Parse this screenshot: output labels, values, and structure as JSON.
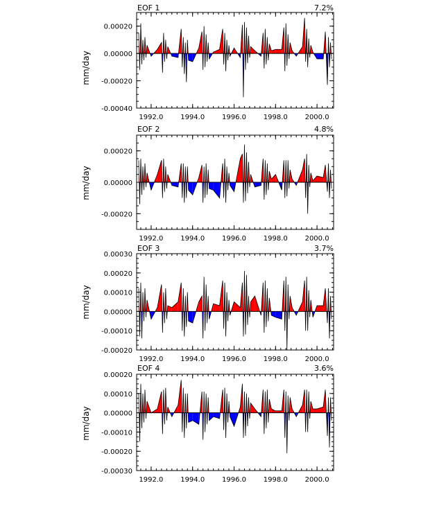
{
  "figure": {
    "title": "EOF time series"
  },
  "colors": {
    "positive": "#ff0000",
    "negative": "#0000ff",
    "line": "#000000"
  },
  "chart_data": [
    {
      "type": "area",
      "title": "EOF 1",
      "variance": "7.2%",
      "ylabel": "mm/day",
      "xlim": [
        1991.3,
        2000.8
      ],
      "ylim": [
        -0.0004,
        0.0003
      ],
      "yticks": [
        -0.0004,
        -0.0002,
        0.0,
        0.0002
      ],
      "ytick_labels": [
        "-0.00040",
        "-0.00020",
        "0.00000",
        "0.00020"
      ],
      "xticks": [
        1992,
        1994,
        1996,
        1998,
        2000
      ],
      "xtick_labels": [
        "1992.0",
        "1994.0",
        "1996.0",
        "1998.0",
        "2000.0"
      ],
      "series": [
        {
          "name": "EOF 1",
          "x": [
            1991.4,
            1991.45,
            1991.5,
            1991.55,
            1991.6,
            1991.65,
            1991.7,
            1991.75,
            1991.8,
            1991.9,
            1992.0,
            1992.3,
            1992.5,
            1992.55,
            1992.6,
            1992.65,
            1992.7,
            1992.75,
            1992.8,
            1993.0,
            1993.3,
            1993.45,
            1993.5,
            1993.55,
            1993.6,
            1993.65,
            1993.7,
            1993.75,
            1993.8,
            1994.0,
            1994.3,
            1994.45,
            1994.5,
            1994.55,
            1994.6,
            1994.65,
            1994.7,
            1994.75,
            1994.8,
            1995.0,
            1995.3,
            1995.45,
            1995.5,
            1995.55,
            1995.6,
            1995.65,
            1995.7,
            1995.75,
            1995.8,
            1996.0,
            1996.3,
            1996.4,
            1996.45,
            1996.5,
            1996.55,
            1996.6,
            1996.65,
            1996.7,
            1996.75,
            1996.8,
            1997.0,
            1997.3,
            1997.4,
            1997.45,
            1997.5,
            1997.55,
            1997.6,
            1997.65,
            1997.7,
            1997.8,
            1998.0,
            1998.3,
            1998.4,
            1998.45,
            1998.5,
            1998.55,
            1998.6,
            1998.65,
            1998.7,
            1998.8,
            1999.0,
            1999.3,
            1999.4,
            1999.45,
            1999.5,
            1999.55,
            1999.6,
            1999.65,
            1999.7,
            1999.8,
            2000.0,
            2000.3,
            2000.4,
            2000.5,
            2000.55,
            2000.6,
            2000.65,
            2000.7
          ],
          "values": [
            0.00015,
            -0.00012,
            0.00022,
            -8e-05,
            0.0001,
            -5e-05,
            0.00012,
            -3e-05,
            6e-05,
            2e-05,
            -2e-05,
            3e-05,
            8e-05,
            -0.00014,
            0.00015,
            -6e-05,
            0.0001,
            -4e-05,
            5e-05,
            -2e-05,
            -3e-05,
            0.00018,
            -0.0001,
            0.00012,
            -0.00015,
            8e-05,
            -0.00021,
            0.0001,
            -5e-05,
            -6e-05,
            4e-05,
            0.00016,
            -0.00012,
            0.0002,
            -0.0001,
            0.00014,
            -6e-05,
            8e-05,
            -4e-05,
            1e-05,
            3e-05,
            0.00018,
            -8e-05,
            0.00015,
            -0.00013,
            0.0001,
            -5e-05,
            6e-05,
            -2e-05,
            4e-05,
            -3e-05,
            0.00021,
            -0.00032,
            0.00023,
            -0.00012,
            0.00019,
            -7e-05,
            0.00013,
            -3e-05,
            5e-05,
            2e-05,
            -2e-05,
            0.00015,
            -0.00011,
            0.00018,
            -8e-05,
            0.00012,
            -5e-05,
            7e-05,
            2e-05,
            3e-05,
            3e-05,
            0.00019,
            -0.00013,
            0.00022,
            -9e-05,
            0.00014,
            -4e-05,
            8e-05,
            2e-05,
            -2e-05,
            5e-05,
            0.00026,
            -6e-05,
            0.00018,
            -0.0001,
            0.00011,
            -3e-05,
            6e-05,
            1e-05,
            -4e-05,
            -4e-05,
            0.00016,
            -0.00023,
            0.00012,
            -0.0001,
            8e-05,
            -4e-05
          ]
        }
      ]
    },
    {
      "type": "area",
      "title": "EOF 2",
      "variance": "4.8%",
      "ylabel": "mm/day",
      "xlim": [
        1991.3,
        2000.8
      ],
      "ylim": [
        -0.0003,
        0.0003
      ],
      "yticks": [
        -0.0002,
        0.0,
        0.0002
      ],
      "ytick_labels": [
        "-0.00020",
        "0.00000",
        "0.00020"
      ],
      "xticks": [
        1992,
        1994,
        1996,
        1998,
        2000
      ],
      "xtick_labels": [
        "1992.0",
        "1994.0",
        "1996.0",
        "1998.0",
        "2000.0"
      ],
      "series": [
        {
          "name": "EOF 2",
          "x": [
            1991.4,
            1991.45,
            1991.5,
            1991.55,
            1991.6,
            1991.65,
            1991.7,
            1991.75,
            1991.8,
            1992.0,
            1992.3,
            1992.5,
            1992.55,
            1992.6,
            1992.65,
            1992.7,
            1992.75,
            1992.8,
            1993.0,
            1993.3,
            1993.45,
            1993.5,
            1993.55,
            1993.6,
            1993.65,
            1993.7,
            1993.75,
            1993.8,
            1994.0,
            1994.3,
            1994.45,
            1994.5,
            1994.55,
            1994.6,
            1994.65,
            1994.7,
            1994.75,
            1994.8,
            1995.0,
            1995.3,
            1995.45,
            1995.5,
            1995.55,
            1995.6,
            1995.65,
            1995.7,
            1995.75,
            1995.8,
            1996.0,
            1996.3,
            1996.4,
            1996.45,
            1996.5,
            1996.55,
            1996.6,
            1996.65,
            1996.7,
            1996.75,
            1996.8,
            1997.0,
            1997.3,
            1997.4,
            1997.45,
            1997.5,
            1997.55,
            1997.6,
            1997.65,
            1997.7,
            1997.8,
            1998.0,
            1998.3,
            1998.4,
            1998.45,
            1998.5,
            1998.55,
            1998.6,
            1998.65,
            1998.7,
            1998.8,
            1999.0,
            1999.3,
            1999.4,
            1999.45,
            1999.5,
            1999.55,
            1999.6,
            1999.65,
            1999.7,
            1999.8,
            2000.0,
            2000.3,
            2000.4,
            2000.5,
            2000.55,
            2000.6,
            2000.65,
            2000.7
          ],
          "values": [
            0.00014,
            -0.00014,
            0.00015,
            -8e-05,
            0.0001,
            -5e-05,
            0.00012,
            -3e-05,
            6e-05,
            -5e-05,
            5e-05,
            0.00014,
            -0.0001,
            0.00015,
            -6e-05,
            0.0001,
            -4e-05,
            5e-05,
            -2e-05,
            -3e-05,
            0.00012,
            -0.0001,
            0.00012,
            -0.00013,
            0.0001,
            -0.0001,
            0.0001,
            -5e-05,
            -8e-05,
            3e-05,
            0.00011,
            -0.00013,
            0.0001,
            -0.0001,
            0.00012,
            -8e-05,
            8e-05,
            -4e-05,
            -5e-05,
            -0.0001,
            0.00012,
            -0.0001,
            0.00015,
            -0.00013,
            0.0001,
            -5e-05,
            6e-05,
            -2e-05,
            -6e-05,
            0.00015,
            0.00018,
            -0.00013,
            0.00024,
            -0.00012,
            0.00019,
            -7e-05,
            0.00013,
            -3e-05,
            5e-05,
            -3e-05,
            -2e-05,
            0.00015,
            -0.00011,
            0.00014,
            -8e-05,
            0.00012,
            -5e-05,
            7e-05,
            2e-05,
            5e-05,
            -5e-05,
            0.00014,
            -0.0001,
            0.00014,
            -9e-05,
            0.00014,
            -4e-05,
            8e-05,
            2e-05,
            -2e-05,
            8e-05,
            0.00015,
            -0.0001,
            0.00018,
            -0.0002,
            0.00011,
            -3e-05,
            6e-05,
            1e-05,
            4e-05,
            3e-05,
            0.00011,
            -6e-05,
            0.00012,
            -0.0001,
            8e-05,
            -4e-05
          ]
        }
      ]
    },
    {
      "type": "area",
      "title": "EOF 3",
      "variance": "3.7%",
      "ylabel": "mm/day",
      "xlim": [
        1991.3,
        2000.8
      ],
      "ylim": [
        -0.0002,
        0.0003
      ],
      "yticks": [
        -0.0002,
        -0.0001,
        0.0,
        0.0001,
        0.0002,
        0.0003
      ],
      "ytick_labels": [
        "-0.00020",
        "-0.00010",
        "0.00000",
        "0.00010",
        "0.00020",
        "0.00030"
      ],
      "xticks": [
        1992,
        1994,
        1996,
        1998,
        2000
      ],
      "xtick_labels": [
        "1992.0",
        "1994.0",
        "1996.0",
        "1998.0",
        "2000.0"
      ],
      "series": [
        {
          "name": "EOF 3",
          "x": [
            1991.4,
            1991.45,
            1991.5,
            1991.55,
            1991.6,
            1991.65,
            1991.7,
            1991.75,
            1991.8,
            1992.0,
            1992.3,
            1992.5,
            1992.55,
            1992.6,
            1992.65,
            1992.7,
            1992.75,
            1992.8,
            1993.0,
            1993.3,
            1993.45,
            1993.5,
            1993.55,
            1993.6,
            1993.65,
            1993.7,
            1993.75,
            1993.8,
            1994.0,
            1994.3,
            1994.45,
            1994.5,
            1994.55,
            1994.6,
            1994.65,
            1994.7,
            1994.75,
            1994.8,
            1995.0,
            1995.3,
            1995.45,
            1995.5,
            1995.55,
            1995.6,
            1995.65,
            1995.7,
            1995.75,
            1995.8,
            1996.0,
            1996.3,
            1996.4,
            1996.45,
            1996.5,
            1996.55,
            1996.6,
            1996.65,
            1996.7,
            1996.75,
            1996.8,
            1997.0,
            1997.3,
            1997.4,
            1997.45,
            1997.5,
            1997.55,
            1997.6,
            1997.65,
            1997.7,
            1997.8,
            1998.0,
            1998.3,
            1998.4,
            1998.45,
            1998.5,
            1998.55,
            1998.6,
            1998.65,
            1998.7,
            1998.8,
            1999.0,
            1999.3,
            1999.4,
            1999.45,
            1999.5,
            1999.55,
            1999.6,
            1999.65,
            1999.7,
            1999.8,
            2000.0,
            2000.3,
            2000.4,
            2000.5,
            2000.55,
            2000.6,
            2000.65,
            2000.7
          ],
          "values": [
            0.00012,
            -0.00013,
            0.00015,
            -0.00014,
            0.0001,
            -5e-05,
            0.00012,
            -3e-05,
            6e-05,
            -4e-05,
            2e-05,
            0.00014,
            -0.00011,
            0.0001,
            -6e-05,
            0.00012,
            -4e-05,
            3e-05,
            2e-05,
            5e-05,
            0.00015,
            -0.0001,
            0.00012,
            -0.00013,
            8e-05,
            -8e-05,
            0.0001,
            -5e-05,
            -6e-05,
            5e-05,
            8e-05,
            -0.00014,
            0.00018,
            -0.0001,
            0.00014,
            -6e-05,
            8e-05,
            -4e-05,
            4e-05,
            3e-05,
            0.00016,
            -9e-05,
            0.00015,
            -0.00013,
            0.0001,
            -5e-05,
            6e-05,
            -2e-05,
            5e-05,
            2e-05,
            0.00015,
            -0.00013,
            0.00021,
            -0.00012,
            0.00019,
            -7e-05,
            8e-05,
            -3e-05,
            5e-05,
            8e-05,
            -2e-05,
            0.00015,
            -0.00011,
            0.00016,
            -8e-05,
            0.00012,
            -5e-05,
            7e-05,
            -2e-05,
            -3e-05,
            -4e-05,
            0.00016,
            -0.0001,
            0.00018,
            -0.0002,
            0.00014,
            -4e-05,
            8e-05,
            2e-05,
            -2e-05,
            5e-05,
            0.00016,
            -0.0001,
            0.00018,
            -0.0001,
            0.00011,
            -3e-05,
            6e-05,
            -3e-05,
            3e-05,
            3e-05,
            0.00012,
            -6e-05,
            0.00012,
            -0.00014,
            8e-05,
            -4e-05
          ]
        }
      ]
    },
    {
      "type": "area",
      "title": "EOF 4",
      "variance": "3.6%",
      "ylabel": "mm/day",
      "xlim": [
        1991.3,
        2000.8
      ],
      "ylim": [
        -0.0003,
        0.0002
      ],
      "yticks": [
        -0.0003,
        -0.0002,
        -0.0001,
        0.0,
        0.0001,
        0.0002
      ],
      "ytick_labels": [
        "-0.00030",
        "-0.00020",
        "-0.00010",
        "0.00000",
        "0.00010",
        "0.00020"
      ],
      "xticks": [
        1992,
        1994,
        1996,
        1998,
        2000
      ],
      "xtick_labels": [
        "1992.0",
        "1994.0",
        "1996.0",
        "1998.0",
        "2000.0"
      ],
      "series": [
        {
          "name": "EOF 4",
          "x": [
            1991.4,
            1991.45,
            1991.5,
            1991.55,
            1991.6,
            1991.65,
            1991.7,
            1991.75,
            1991.8,
            1992.0,
            1992.3,
            1992.5,
            1992.55,
            1992.6,
            1992.65,
            1992.7,
            1992.75,
            1992.8,
            1993.0,
            1993.3,
            1993.45,
            1993.5,
            1993.55,
            1993.6,
            1993.65,
            1993.7,
            1993.75,
            1993.8,
            1994.0,
            1994.3,
            1994.45,
            1994.5,
            1994.55,
            1994.6,
            1994.65,
            1994.7,
            1994.75,
            1994.8,
            1995.0,
            1995.3,
            1995.45,
            1995.5,
            1995.55,
            1995.6,
            1995.65,
            1995.7,
            1995.75,
            1995.8,
            1996.0,
            1996.3,
            1996.4,
            1996.45,
            1996.5,
            1996.55,
            1996.6,
            1996.65,
            1996.7,
            1996.75,
            1996.8,
            1997.0,
            1997.3,
            1997.4,
            1997.45,
            1997.5,
            1997.55,
            1997.6,
            1997.65,
            1997.7,
            1997.8,
            1998.0,
            1998.3,
            1998.4,
            1998.45,
            1998.5,
            1998.55,
            1998.6,
            1998.65,
            1998.7,
            1998.8,
            1999.0,
            1999.3,
            1999.4,
            1999.45,
            1999.5,
            1999.55,
            1999.6,
            1999.65,
            1999.7,
            1999.8,
            2000.0,
            2000.3,
            2000.4,
            2000.5,
            2000.55,
            2000.6,
            2000.65,
            2000.7
          ],
          "values": [
            0.0001,
            -0.00015,
            0.00015,
            -8e-05,
            0.0001,
            -5e-05,
            0.00012,
            -3e-05,
            6e-05,
            0.0,
            2e-05,
            0.00011,
            -0.00011,
            0.00012,
            -6e-05,
            0.00013,
            -4e-05,
            3e-05,
            -2e-05,
            4e-05,
            0.00017,
            -0.0001,
            0.00013,
            -0.00013,
            0.0001,
            -8e-05,
            0.0001,
            -5e-05,
            -4e-05,
            -6e-05,
            0.00011,
            -0.00014,
            0.00011,
            -0.0001,
            0.0001,
            -6e-05,
            8e-05,
            -4e-05,
            -2e-05,
            -3e-05,
            0.00012,
            -9e-05,
            0.00013,
            -0.00013,
            0.0001,
            -5e-05,
            6e-05,
            -2e-05,
            -7e-05,
            3e-05,
            0.00015,
            -0.00013,
            0.00011,
            -0.00012,
            0.0001,
            -7e-05,
            8e-05,
            -3e-05,
            5e-05,
            2e-05,
            -2e-05,
            0.00012,
            -0.00011,
            0.00011,
            -8e-05,
            0.00012,
            -5e-05,
            7e-05,
            2e-05,
            1e-05,
            1e-05,
            0.00012,
            -0.00013,
            0.00011,
            -0.00021,
            9e-05,
            -4e-05,
            8e-05,
            2e-05,
            -2e-05,
            4e-05,
            0.00012,
            -0.0001,
            0.00012,
            -0.0001,
            0.00011,
            -3e-05,
            6e-05,
            2e-05,
            2e-05,
            3e-05,
            0.00012,
            -0.00012,
            8e-05,
            -0.00018,
            8e-05,
            -4e-05
          ]
        }
      ]
    }
  ]
}
